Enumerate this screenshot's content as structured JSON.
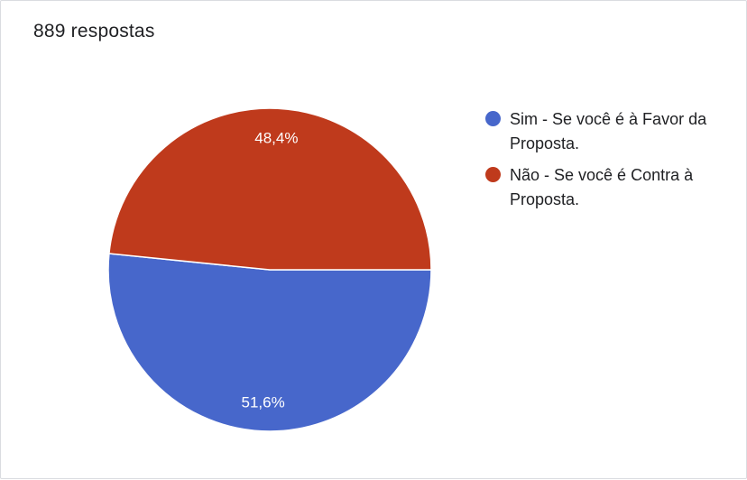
{
  "header": {
    "response_count": "889 respostas"
  },
  "colors": {
    "sim": "#4767cb",
    "nao": "#bf3a1c"
  },
  "chart_data": {
    "type": "pie",
    "title": "",
    "slices": [
      {
        "label": "Sim - Se você é à Favor da Proposta.",
        "value": 51.6,
        "display": "51,6%",
        "color": "#4767cb"
      },
      {
        "label": "Não - Se você é Contra à Proposta.",
        "value": 48.4,
        "display": "48,4%",
        "color": "#bf3a1c"
      }
    ],
    "legend_position": "right"
  }
}
